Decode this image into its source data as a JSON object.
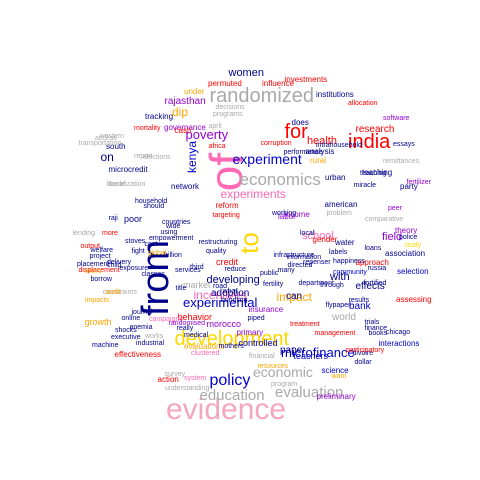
{
  "words": [
    {
      "text": "evidence",
      "color": "#f4a6c1"
    },
    {
      "text": "from",
      "color": "#00008b"
    },
    {
      "text": "of",
      "color": "#ff69b4"
    },
    {
      "text": "to",
      "color": "#ffd700"
    },
    {
      "text": "randomized",
      "color": "#a9a9a9"
    },
    {
      "text": "development",
      "color": "#ffd700"
    },
    {
      "text": "economics",
      "color": "#a9a9a9"
    },
    {
      "text": "india",
      "color": "#ff0000"
    },
    {
      "text": "for",
      "color": "#ff0000"
    },
    {
      "text": "experiment",
      "color": "#0000cd"
    },
    {
      "text": "policy",
      "color": "#0000cd"
    },
    {
      "text": "experimental",
      "color": "#0000cd"
    },
    {
      "text": "economic",
      "color": "#a9a9a9"
    },
    {
      "text": "education",
      "color": "#a9a9a9"
    },
    {
      "text": "evaluation",
      "color": "#a9a9a9"
    },
    {
      "text": "microfinance",
      "color": "#0000cd"
    },
    {
      "text": "experiments",
      "color": "#ff69b4"
    },
    {
      "text": "incentives",
      "color": "#ff69b4"
    },
    {
      "text": "poverty",
      "color": "#9400d3"
    },
    {
      "text": "women",
      "color": "#00008b"
    },
    {
      "text": "kenya",
      "color": "#0000cd"
    },
    {
      "text": "on",
      "color": "#00008b"
    },
    {
      "text": "dip",
      "color": "#ffa500"
    },
    {
      "text": "impact",
      "color": "#ffa500"
    },
    {
      "text": "research",
      "color": "#ff0000"
    },
    {
      "text": "health",
      "color": "#ff0000"
    },
    {
      "text": "effects",
      "color": "#00008b"
    },
    {
      "text": "field",
      "color": "#9400d3"
    },
    {
      "text": "with",
      "color": "#00008b"
    },
    {
      "text": "school",
      "color": "#ff69b4"
    },
    {
      "text": "developing",
      "color": "#00008b"
    },
    {
      "text": "adoption",
      "color": "#00008b"
    },
    {
      "text": "world",
      "color": "#a9a9a9"
    },
    {
      "text": "bank",
      "color": "#0000cd"
    },
    {
      "text": "can",
      "color": "#00008b"
    },
    {
      "text": "rajasthan",
      "color": "#9400d3"
    },
    {
      "text": "market",
      "color": "#a9a9a9"
    },
    {
      "text": "paper",
      "color": "#00008b"
    },
    {
      "text": "teachers",
      "color": "#0000cd"
    },
    {
      "text": "science",
      "color": "#0000cd"
    },
    {
      "text": "preliminary",
      "color": "#9400d3"
    },
    {
      "text": "action",
      "color": "#ff0000"
    },
    {
      "text": "effectiveness",
      "color": "#ff0000"
    },
    {
      "text": "morocco",
      "color": "#9400d3"
    },
    {
      "text": "evaluations",
      "color": "#ffa500"
    },
    {
      "text": "controlled",
      "color": "#0000cd"
    },
    {
      "text": "primary",
      "color": "#9400d3"
    },
    {
      "text": "behavior",
      "color": "#ff0000"
    },
    {
      "text": "insurance",
      "color": "#9400d3"
    },
    {
      "text": "growth",
      "color": "#ffa500"
    },
    {
      "text": "credit",
      "color": "#ff0000"
    },
    {
      "text": "microcredit",
      "color": "#00008b"
    },
    {
      "text": "south",
      "color": "#00008b"
    },
    {
      "text": "poor",
      "color": "#00008b"
    },
    {
      "text": "labor",
      "color": "#9400d3"
    },
    {
      "text": "network",
      "color": "#00008b"
    },
    {
      "text": "american",
      "color": "#00008b"
    },
    {
      "text": "teaching",
      "color": "#00008b"
    },
    {
      "text": "party",
      "color": "#00008b"
    },
    {
      "text": "rural",
      "color": "#ffa500"
    },
    {
      "text": "urban",
      "color": "#00008b"
    },
    {
      "text": "income",
      "color": "#9400d3"
    },
    {
      "text": "interactions",
      "color": "#0000cd"
    },
    {
      "text": "selection",
      "color": "#0000cd"
    },
    {
      "text": "approach",
      "color": "#ff0000"
    },
    {
      "text": "assessing",
      "color": "#ff0000"
    },
    {
      "text": "association",
      "color": "#00008b"
    },
    {
      "text": "theory",
      "color": "#9400d3"
    },
    {
      "text": "water",
      "color": "#00008b"
    },
    {
      "text": "gender",
      "color": "#ff0000"
    },
    {
      "text": "analysis",
      "color": "#00008b"
    },
    {
      "text": "does",
      "color": "#00008b"
    },
    {
      "text": "institutions",
      "color": "#00008b"
    },
    {
      "text": "investments",
      "color": "#ff0000"
    },
    {
      "text": "permuted",
      "color": "#ff0000"
    },
    {
      "text": "influence",
      "color": "#ff0000"
    },
    {
      "text": "under",
      "color": "#ffa500"
    },
    {
      "text": "tracking",
      "color": "#00008b"
    },
    {
      "text": "governance",
      "color": "#9400d3"
    },
    {
      "text": "cash",
      "color": "#ff0000"
    },
    {
      "text": "mortality",
      "color": "#ff0000"
    },
    {
      "text": "africa",
      "color": "#ff0000"
    },
    {
      "text": "corruption",
      "color": "#ff0000"
    },
    {
      "text": "performance",
      "color": "#00008b"
    },
    {
      "text": "allocation",
      "color": "#ff0000"
    },
    {
      "text": "software",
      "color": "#9400d3"
    },
    {
      "text": "essays",
      "color": "#00008b"
    },
    {
      "text": "reform",
      "color": "#ff0000"
    },
    {
      "text": "targeting",
      "color": "#ff0000"
    },
    {
      "text": "working",
      "color": "#00008b"
    },
    {
      "text": "miracle",
      "color": "#00008b"
    },
    {
      "text": "fertilizer",
      "color": "#9400d3"
    },
    {
      "text": "police",
      "color": "#00008b"
    },
    {
      "text": "study",
      "color": "#ffd700"
    },
    {
      "text": "labels",
      "color": "#00008b"
    },
    {
      "text": "loans",
      "color": "#00008b"
    },
    {
      "text": "russia",
      "color": "#00008b"
    },
    {
      "text": "community",
      "color": "#0000cd"
    },
    {
      "text": "fortified",
      "color": "#00008b"
    },
    {
      "text": "happiness",
      "color": "#00008b"
    },
    {
      "text": "repenser",
      "color": "#00008b"
    },
    {
      "text": "information",
      "color": "#00008b"
    },
    {
      "text": "department",
      "color": "#00008b"
    },
    {
      "text": "through",
      "color": "#00008b"
    },
    {
      "text": "fertility",
      "color": "#00008b"
    },
    {
      "text": "results",
      "color": "#00008b"
    },
    {
      "text": "treatment",
      "color": "#ff0000"
    },
    {
      "text": "trials",
      "color": "#00008b"
    },
    {
      "text": "books",
      "color": "#00008b"
    },
    {
      "text": "finance",
      "color": "#00008b"
    },
    {
      "text": "chicago",
      "color": "#00008b"
    },
    {
      "text": "divoire",
      "color": "#00008b"
    },
    {
      "text": "dollar",
      "color": "#00008b"
    },
    {
      "text": "participatory",
      "color": "#ff0000"
    },
    {
      "text": "flypaper",
      "color": "#00008b"
    },
    {
      "text": "infrastructure",
      "color": "#00008b"
    },
    {
      "text": "services",
      "color": "#00008b"
    },
    {
      "text": "third",
      "color": "#00008b"
    },
    {
      "text": "title",
      "color": "#00008b"
    },
    {
      "text": "what",
      "color": "#00008b"
    },
    {
      "text": "road",
      "color": "#00008b"
    },
    {
      "text": "bundling",
      "color": "#00008b"
    },
    {
      "text": "piped",
      "color": "#00008b"
    },
    {
      "text": "medical",
      "color": "#00008b"
    },
    {
      "text": "anemia",
      "color": "#00008b"
    },
    {
      "text": "shocks",
      "color": "#00008b"
    },
    {
      "text": "executive",
      "color": "#00008b"
    },
    {
      "text": "machine",
      "color": "#00008b"
    },
    {
      "text": "industrial",
      "color": "#00008b"
    },
    {
      "text": "journal",
      "color": "#00008b"
    },
    {
      "text": "constraints",
      "color": "#a9a9a9"
    },
    {
      "text": "impacts",
      "color": "#ffa500"
    },
    {
      "text": "audit",
      "color": "#ffa500"
    },
    {
      "text": "placement",
      "color": "#00008b"
    },
    {
      "text": "displacement",
      "color": "#ff0000"
    },
    {
      "text": "borrow",
      "color": "#00008b"
    },
    {
      "text": "micro",
      "color": "#ffa500"
    },
    {
      "text": "delivery",
      "color": "#00008b"
    },
    {
      "text": "child",
      "color": "#00008b"
    },
    {
      "text": "exposure",
      "color": "#00008b"
    },
    {
      "text": "classes",
      "color": "#00008b"
    },
    {
      "text": "output",
      "color": "#ff0000"
    },
    {
      "text": "welfare",
      "color": "#00008b"
    },
    {
      "text": "project",
      "color": "#00008b"
    },
    {
      "text": "lending",
      "color": "#a9a9a9"
    },
    {
      "text": "more",
      "color": "#ff0000"
    },
    {
      "text": "raji",
      "color": "#00008b"
    },
    {
      "text": "stoves",
      "color": "#00008b"
    },
    {
      "text": "empowerment",
      "color": "#00008b"
    },
    {
      "text": "wide",
      "color": "#00008b"
    },
    {
      "text": "should",
      "color": "#00008b"
    },
    {
      "text": "using",
      "color": "#00008b"
    },
    {
      "text": "countries",
      "color": "#00008b"
    },
    {
      "text": "household",
      "color": "#00008b"
    },
    {
      "text": "trade",
      "color": "#a9a9a9"
    },
    {
      "text": "liberalization",
      "color": "#a9a9a9"
    },
    {
      "text": "report",
      "color": "#a9a9a9"
    },
    {
      "text": "elections",
      "color": "#a9a9a9"
    },
    {
      "text": "western",
      "color": "#a9a9a9"
    },
    {
      "text": "access",
      "color": "#a9a9a9"
    },
    {
      "text": "transportation",
      "color": "#a9a9a9"
    },
    {
      "text": "april",
      "color": "#a9a9a9"
    },
    {
      "text": "decisions",
      "color": "#a9a9a9"
    },
    {
      "text": "programs",
      "color": "#a9a9a9"
    },
    {
      "text": "restructuring",
      "color": "#00008b"
    },
    {
      "text": "quality",
      "color": "#00008b"
    },
    {
      "text": "billion",
      "color": "#00008b"
    },
    {
      "text": "cost",
      "color": "#00008b"
    },
    {
      "text": "fight",
      "color": "#00008b"
    },
    {
      "text": "global",
      "color": "#ffa500"
    },
    {
      "text": "reduce",
      "color": "#00008b"
    },
    {
      "text": "public",
      "color": "#00008b"
    },
    {
      "text": "many",
      "color": "#00008b"
    },
    {
      "text": "directed",
      "color": "#00008b"
    },
    {
      "text": "local",
      "color": "#00008b"
    },
    {
      "text": "intrahousehold",
      "color": "#00008b"
    },
    {
      "text": "teaching",
      "color": "#00008b"
    },
    {
      "text": "remittances",
      "color": "#a9a9a9"
    },
    {
      "text": "comparative",
      "color": "#a9a9a9"
    },
    {
      "text": "peer",
      "color": "#9400d3"
    },
    {
      "text": "management",
      "color": "#ff0000"
    },
    {
      "text": "mothers",
      "color": "#00008b"
    },
    {
      "text": "clustered",
      "color": "#ff69b4"
    },
    {
      "text": "financial",
      "color": "#a9a9a9"
    },
    {
      "text": "resources",
      "color": "#ffa500"
    },
    {
      "text": "want",
      "color": "#ffa500"
    },
    {
      "text": "system",
      "color": "#ff69b4"
    },
    {
      "text": "understanding",
      "color": "#a9a9a9"
    },
    {
      "text": "program",
      "color": "#a9a9a9"
    },
    {
      "text": "campaigns",
      "color": "#ff69b4"
    },
    {
      "text": "randomised",
      "color": "#9400d3"
    },
    {
      "text": "online",
      "color": "#00008b"
    },
    {
      "text": "really",
      "color": "#00008b"
    },
    {
      "text": "problem",
      "color": "#a9a9a9"
    },
    {
      "text": "works",
      "color": "#a9a9a9"
    },
    {
      "text": "survey",
      "color": "#a9a9a9"
    }
  ]
}
